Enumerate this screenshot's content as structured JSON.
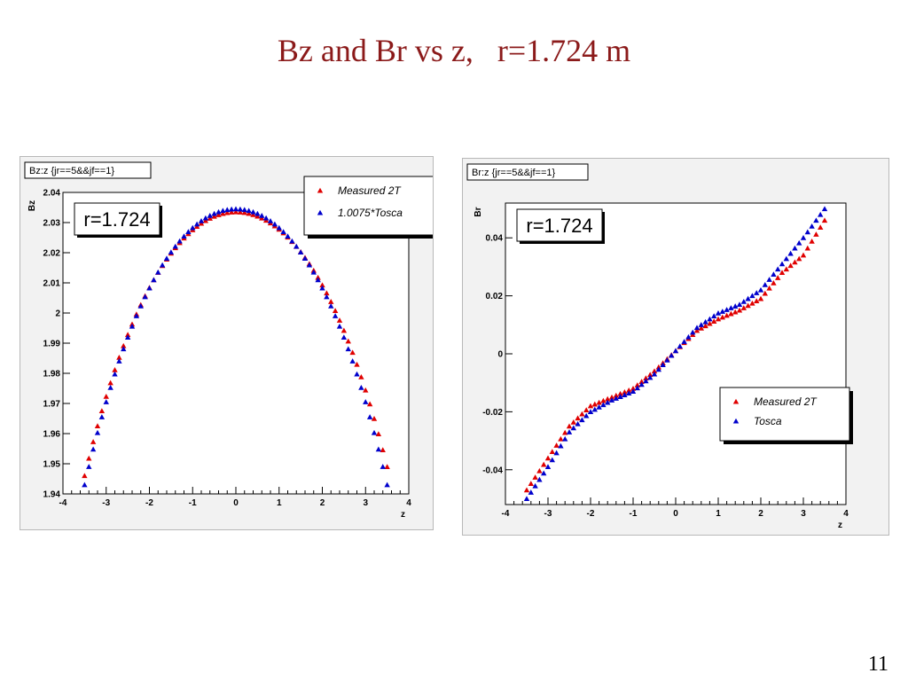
{
  "slide": {
    "title": "Bz and Br vs z,   r=1.724 m",
    "page_number": "11"
  },
  "chart_data": [
    {
      "type": "scatter",
      "panel_title": "Bz:z {jr==5&&jf==1}",
      "annotation": "r=1.724",
      "xlabel": "z",
      "ylabel": "Bz",
      "xlim": [
        -4,
        4
      ],
      "ylim": [
        1.94,
        2.04
      ],
      "xticks": [
        "-4",
        "-3",
        "-2",
        "-1",
        "0",
        "1",
        "2",
        "3",
        "4"
      ],
      "yticks": [
        "1.94",
        "1.95",
        "1.96",
        "1.97",
        "1.98",
        "1.99",
        "2",
        "2.01",
        "2.02",
        "2.03",
        "2.04"
      ],
      "legend_position": "top-right",
      "series": [
        {
          "name": "Measured 2T",
          "color": "#e00000",
          "marker": "triangle",
          "x_range": [
            -3.5,
            3.5
          ],
          "peak": 2.0335,
          "end_left": 1.946,
          "end_right": 1.949
        },
        {
          "name": "1.0075*Tosca",
          "color": "#0000cc",
          "marker": "triangle",
          "x_range": [
            -3.5,
            3.5
          ],
          "peak": 2.0345,
          "end_left": 1.943,
          "end_right": 1.943
        }
      ]
    },
    {
      "type": "scatter",
      "panel_title": "Br:z {jr==5&&jf==1}",
      "annotation": "r=1.724",
      "xlabel": "z",
      "ylabel": "Br",
      "xlim": [
        -4,
        4
      ],
      "ylim": [
        -0.052,
        0.052
      ],
      "xticks": [
        "-4",
        "-3",
        "-2",
        "-1",
        "0",
        "1",
        "2",
        "3",
        "4"
      ],
      "yticks": [
        "-0.04",
        "-0.02",
        "0",
        "0.02",
        "0.04"
      ],
      "ytick_values": [
        -0.04,
        -0.02,
        0,
        0.02,
        0.04
      ],
      "legend_position": "bottom-right",
      "series": [
        {
          "name": "Measured 2T",
          "color": "#e00000",
          "marker": "triangle",
          "x": [
            -3.5,
            -3.0,
            -2.5,
            -2.0,
            -1.5,
            -1.0,
            -0.5,
            0.0,
            0.5,
            1.0,
            1.5,
            2.0,
            2.5,
            3.0,
            3.5
          ],
          "y": [
            -0.047,
            -0.036,
            -0.025,
            -0.018,
            -0.015,
            -0.012,
            -0.006,
            0.001,
            0.008,
            0.012,
            0.015,
            0.019,
            0.028,
            0.034,
            0.046
          ]
        },
        {
          "name": "Tosca",
          "color": "#0000cc",
          "marker": "triangle",
          "x": [
            -3.5,
            -3.0,
            -2.5,
            -2.0,
            -1.5,
            -1.0,
            -0.5,
            0.0,
            0.5,
            1.0,
            1.5,
            2.0,
            2.5,
            3.0,
            3.5
          ],
          "y": [
            -0.05,
            -0.039,
            -0.027,
            -0.02,
            -0.016,
            -0.013,
            -0.007,
            0.001,
            0.009,
            0.014,
            0.017,
            0.022,
            0.031,
            0.04,
            0.05
          ]
        }
      ]
    }
  ]
}
